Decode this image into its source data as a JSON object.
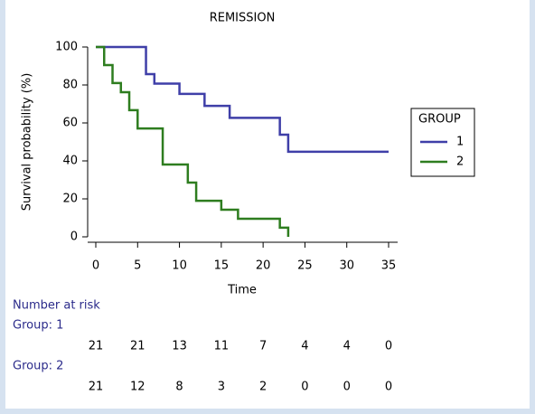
{
  "chart_data": {
    "type": "step",
    "title": "REMISSION",
    "x_label": "Time",
    "y_label": "Survival probability (%)",
    "xlim": [
      0,
      35
    ],
    "xticks": [
      0,
      5,
      10,
      15,
      20,
      25,
      30,
      35
    ],
    "ylim": [
      0,
      100
    ],
    "yticks": [
      0,
      20,
      40,
      60,
      80,
      100
    ],
    "legend_title": "GROUP",
    "legend_position": "right",
    "series": [
      {
        "name": "1",
        "color": "#3f3fa8",
        "x": [
          0,
          6,
          7,
          10,
          13,
          16,
          22,
          23,
          35
        ],
        "values": [
          100,
          85.7,
          80.7,
          75.3,
          69,
          62.7,
          53.8,
          44.8,
          44.8
        ]
      },
      {
        "name": "2",
        "color": "#2e7d1f",
        "x": [
          0,
          1,
          2,
          3,
          4,
          5,
          8,
          11,
          12,
          15,
          17,
          22,
          23
        ],
        "values": [
          100,
          90.5,
          81,
          76.2,
          66.7,
          57.1,
          38.1,
          28.6,
          19,
          14.3,
          9.5,
          4.8,
          0
        ]
      }
    ]
  },
  "risk_table": {
    "title": "Number at risk",
    "rows": [
      {
        "label": "Group: 1",
        "values": [
          21,
          21,
          13,
          11,
          7,
          4,
          4,
          0
        ]
      },
      {
        "label": "Group: 2",
        "values": [
          21,
          12,
          8,
          3,
          2,
          0,
          0,
          0
        ]
      }
    ]
  }
}
